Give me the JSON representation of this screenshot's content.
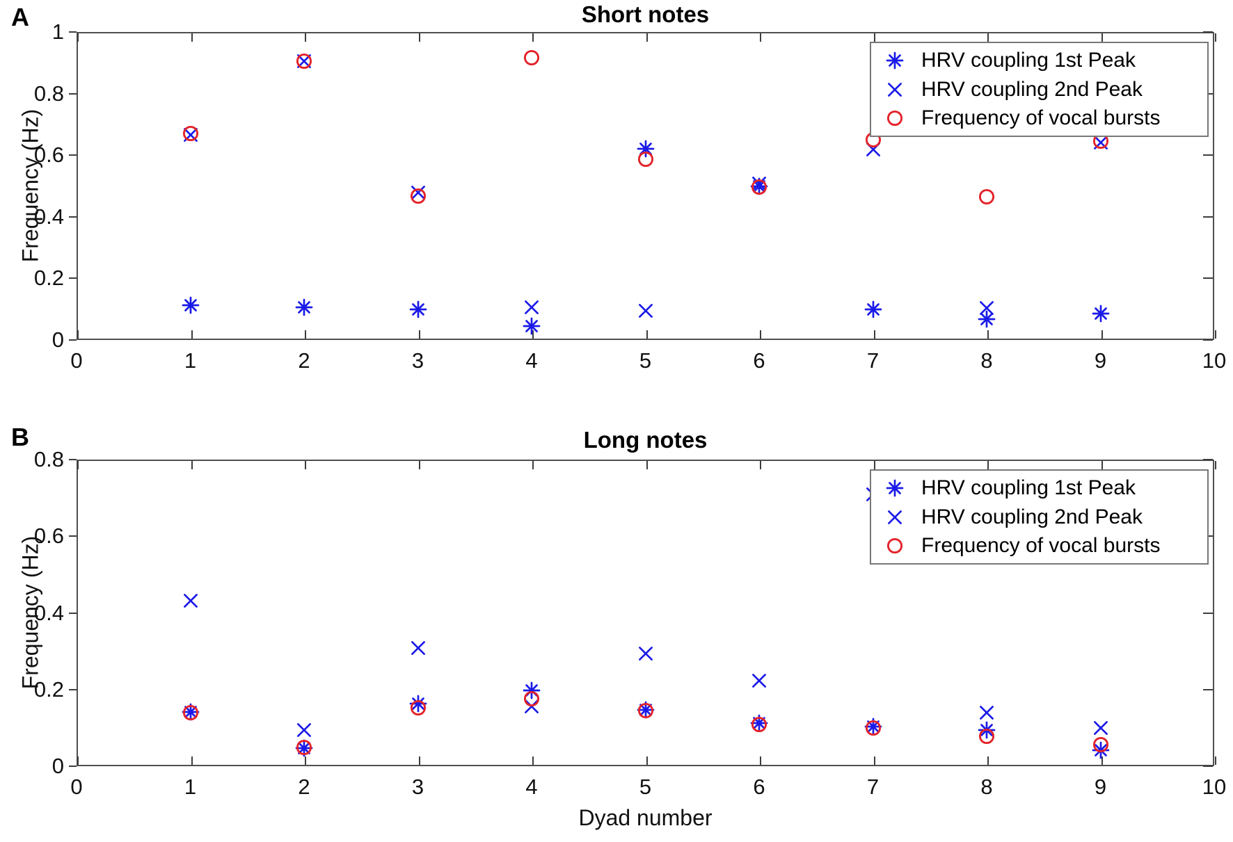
{
  "figure": {
    "background": "#ffffff"
  },
  "colors": {
    "hrv_blue": "#1a1ae8",
    "vocal_red": "#e32329",
    "axis": "#4f4f4f",
    "text": "#000000"
  },
  "chart_data": [
    {
      "type": "scatter",
      "panel_label": "A",
      "title": "Short notes",
      "xlabel": "",
      "ylabel": "Frequency (Hz)",
      "xlim": [
        0,
        10
      ],
      "ylim": [
        0,
        1
      ],
      "xticks": [
        0,
        1,
        2,
        3,
        4,
        5,
        6,
        7,
        8,
        9,
        10
      ],
      "xtick_labels": [
        "0",
        "1",
        "2",
        "3",
        "4",
        "5",
        "6",
        "7",
        "8",
        "9",
        "10"
      ],
      "yticks": [
        0,
        0.2,
        0.4,
        0.6,
        0.8,
        1
      ],
      "ytick_labels": [
        "0",
        "0.2",
        "0.4",
        "0.6",
        "0.8",
        "1"
      ],
      "grid": false,
      "legend_position": "northeast-inside",
      "x": [
        1,
        2,
        3,
        4,
        5,
        6,
        7,
        8,
        9
      ],
      "series": [
        {
          "name": "HRV coupling 1st Peak",
          "marker": "asterisk",
          "color_key": "hrv_blue",
          "y": [
            0.113,
            0.105,
            0.099,
            0.046,
            0.62,
            0.5,
            0.099,
            0.068,
            0.086
          ]
        },
        {
          "name": "HRV coupling 2nd Peak",
          "marker": "x",
          "color_key": "hrv_blue",
          "y": [
            0.665,
            0.905,
            0.478,
            0.107,
            0.094,
            0.508,
            0.618,
            0.104,
            0.641
          ]
        },
        {
          "name": "Frequency of vocal bursts",
          "marker": "circle",
          "color_key": "vocal_red",
          "y": [
            0.67,
            0.905,
            0.468,
            0.917,
            0.587,
            0.496,
            0.651,
            0.465,
            0.645
          ]
        }
      ]
    },
    {
      "type": "scatter",
      "panel_label": "B",
      "title": "Long notes",
      "xlabel": "Dyad number",
      "ylabel": "Frequency (Hz)",
      "xlim": [
        0,
        10
      ],
      "ylim": [
        0,
        0.8
      ],
      "xticks": [
        0,
        1,
        2,
        3,
        4,
        5,
        6,
        7,
        8,
        9,
        10
      ],
      "xtick_labels": [
        "0",
        "1",
        "2",
        "3",
        "4",
        "5",
        "6",
        "7",
        "8",
        "9",
        "10"
      ],
      "yticks": [
        0,
        0.2,
        0.4,
        0.6,
        0.8
      ],
      "ytick_labels": [
        "0",
        "0.2",
        "0.4",
        "0.6",
        "0.8"
      ],
      "grid": false,
      "legend_position": "northeast-inside",
      "x": [
        1,
        2,
        3,
        4,
        5,
        6,
        7,
        8,
        9
      ],
      "series": [
        {
          "name": "HRV coupling 1st Peak",
          "marker": "asterisk",
          "color_key": "hrv_blue",
          "y": [
            0.141,
            0.047,
            0.164,
            0.197,
            0.147,
            0.112,
            0.103,
            0.095,
            0.042
          ]
        },
        {
          "name": "HRV coupling 2nd Peak",
          "marker": "x",
          "color_key": "hrv_blue",
          "y": [
            0.432,
            0.094,
            0.309,
            0.156,
            0.293,
            0.223,
            0.71,
            0.14,
            0.1
          ]
        },
        {
          "name": "Frequency of vocal bursts",
          "marker": "circle",
          "color_key": "vocal_red",
          "y": [
            0.14,
            0.049,
            0.152,
            0.176,
            0.145,
            0.108,
            0.1,
            0.078,
            0.057
          ]
        }
      ]
    }
  ]
}
